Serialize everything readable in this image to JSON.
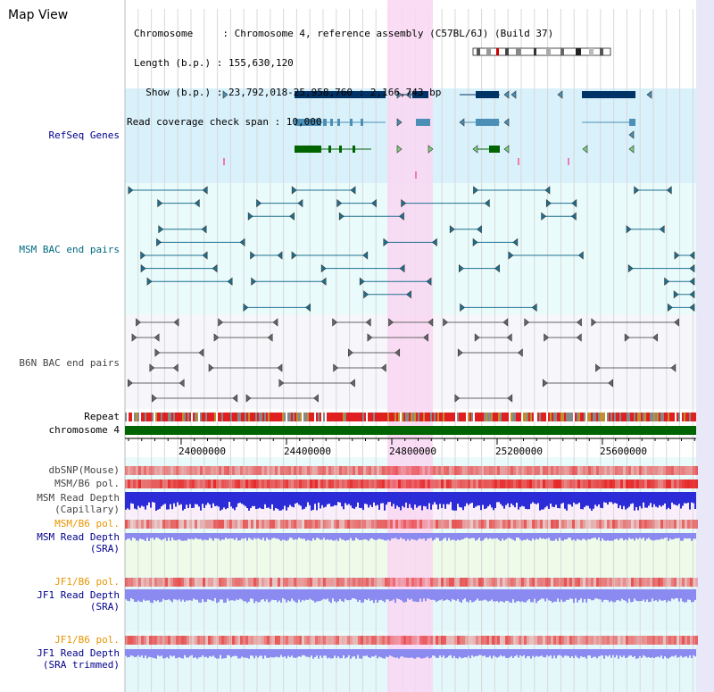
{
  "header": {
    "title": "Map View",
    "info_lines": [
      "Chromosome     : Chromosome 4, reference assembly (C57BL/6J) (Build 37)",
      "Length (b.p.) : 155,630,120",
      "  Show (b.p.) : 23,792,018-25,958,760 : 2,166,743 bp",
      "Read coverage check span : 10,000"
    ]
  },
  "tracks": {
    "refseq": "RefSeq Genes",
    "msm_bac": "MSM BAC end pairs",
    "b6n_bac": "B6N BAC end pairs",
    "repeat": "Repeat",
    "chromosome": "chromosome 4",
    "dbsnp": "dbSNP(Mouse)",
    "msm_b6_pol": "MSM/B6 pol.",
    "msm_read_depth_cap_1": "MSM Read Depth",
    "msm_read_depth_cap_2": "(Capillary)",
    "msm_b6_pol_2": "MSM/B6 pol.",
    "msm_read_depth_sra_1": "MSM Read Depth",
    "msm_read_depth_sra_2": "(SRA)",
    "jf1_b6_pol": "JF1/B6 pol.",
    "jf1_read_depth_sra_1": "JF1 Read Depth",
    "jf1_read_depth_sra_2": "(SRA)",
    "jf1_b6_pol_2": "JF1/B6 pol.",
    "jf1_read_depth_trim_1": "JF1 Read Depth",
    "jf1_read_depth_trim_2": "(SRA trimmed)"
  },
  "axis": {
    "ticks": [
      "24000000",
      "24400000",
      "24800000",
      "25200000",
      "25600000"
    ]
  },
  "colors": {
    "refseq_bg": "#d9f1fb",
    "bac_bg": "#e9fbfb",
    "b6n_bg": "#f7f7fb",
    "lower_bg": "#e9fbfb",
    "highlight": "#f9d7f2",
    "chromosome_bar": "#006400",
    "refseq_dark": "#003366",
    "refseq_mid": "#4b8fb6",
    "refseq_green": "#006400",
    "snp_red": "#f05050",
    "depth_blue": "#2b2bd8",
    "depth_light": "#8a8af0"
  }
}
